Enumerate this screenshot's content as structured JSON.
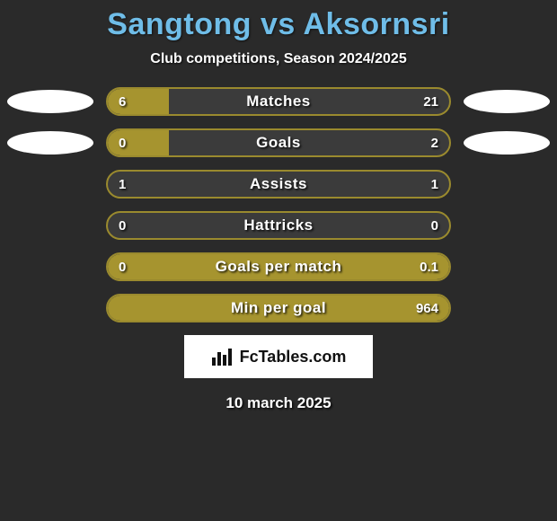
{
  "title": "Sangtong vs Aksornsri",
  "subtitle": "Club competitions, Season 2024/2025",
  "date": "10 march 2025",
  "logo_text": "FcTables.com",
  "colors": {
    "bg": "#2a2a2a",
    "title": "#6fbde8",
    "bar_track": "#3b3b3b",
    "bar_border": "#9a8a2e",
    "bar_fill": "#a6942f",
    "ellipse": "#ffffff",
    "text": "#ffffff",
    "logo_bg": "#ffffff",
    "logo_text": "#111111"
  },
  "typography": {
    "title_fontsize": 34,
    "subtitle_fontsize": 16,
    "bar_label_fontsize": 17,
    "bar_value_fontsize": 15,
    "date_fontsize": 17,
    "logo_fontsize": 18
  },
  "stats": [
    {
      "label": "Matches",
      "left_val": "6",
      "right_val": "21",
      "left_pct": 18,
      "right_pct": 0,
      "show_left_ellipse": true,
      "show_right_ellipse": true
    },
    {
      "label": "Goals",
      "left_val": "0",
      "right_val": "2",
      "left_pct": 18,
      "right_pct": 0,
      "show_left_ellipse": true,
      "show_right_ellipse": true
    },
    {
      "label": "Assists",
      "left_val": "1",
      "right_val": "1",
      "left_pct": 0,
      "right_pct": 0,
      "show_left_ellipse": false,
      "show_right_ellipse": false
    },
    {
      "label": "Hattricks",
      "left_val": "0",
      "right_val": "0",
      "left_pct": 0,
      "right_pct": 0,
      "show_left_ellipse": false,
      "show_right_ellipse": false
    },
    {
      "label": "Goals per match",
      "left_val": "0",
      "right_val": "0.1",
      "left_pct": 0,
      "right_pct": 100,
      "show_left_ellipse": false,
      "show_right_ellipse": false
    },
    {
      "label": "Min per goal",
      "left_val": "",
      "right_val": "964",
      "left_pct": 0,
      "right_pct": 100,
      "show_left_ellipse": false,
      "show_right_ellipse": false
    }
  ]
}
